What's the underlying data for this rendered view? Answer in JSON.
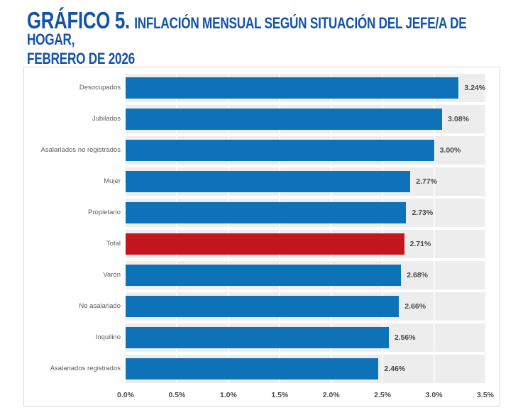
{
  "title": {
    "line1_big": "GRÁFICO 5.",
    "line1_rest": "INFLACIÓN MENSUAL SEGÚN SITUACIÓN DEL JEFE/A DE HOGAR,",
    "line2": "FEBRERO DE 2026",
    "color": "#1452a8"
  },
  "chart_data": {
    "type": "bar",
    "orientation": "horizontal",
    "title": "GRÁFICO 5. INFLACIÓN MENSUAL SEGÚN SITUACIÓN DEL JEFE/A DE HOGAR, FEBRERO DE 2026",
    "categories": [
      "Desocupados",
      "Jubilados",
      "Asalariados no registrados",
      "Mujer",
      "Propietario",
      "Total",
      "Varón",
      "No asalariado",
      "Inquilino",
      "Asalariados registrados"
    ],
    "values": [
      3.24,
      3.08,
      3.0,
      2.77,
      2.73,
      2.71,
      2.68,
      2.66,
      2.56,
      2.46
    ],
    "value_labels": [
      "3.24%",
      "3.08%",
      "3.00%",
      "2.77%",
      "2.73%",
      "2.71%",
      "2.68%",
      "2.66%",
      "2.56%",
      "2.46%"
    ],
    "highlight_index": 5,
    "bar_color": "#0e72b8",
    "highlight_color": "#c4161d",
    "plot_background": "#ededed",
    "band_gap_color": "#f7f7f7",
    "grid_color": "#fafafa",
    "xlim": [
      0,
      3.5
    ],
    "x_ticks": [
      "0.0%",
      "0.5%",
      "1.0%",
      "1.5%",
      "2.0%",
      "2.5%",
      "3.0%",
      "3.5%"
    ],
    "x_tick_values": [
      0,
      0.5,
      1.0,
      1.5,
      2.0,
      2.5,
      3.0,
      3.5
    ],
    "grid": true,
    "legend": "none",
    "xlabel": "",
    "ylabel": ""
  }
}
